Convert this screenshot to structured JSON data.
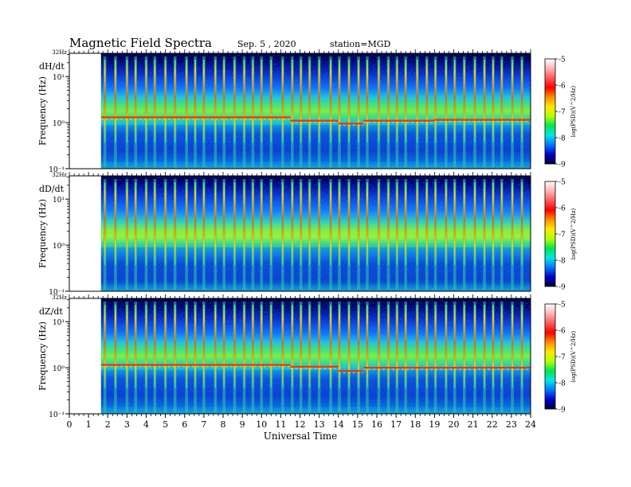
{
  "header": {
    "title": "Magnetic  Field  Spectra",
    "date": "Sep. 5  , 2020",
    "station": "station=MGD"
  },
  "chart_data": {
    "type": "heatmap",
    "xlabel": "Universal  Time",
    "x_ticks": [
      "0",
      "1",
      "2",
      "3",
      "4",
      "5",
      "6",
      "7",
      "8",
      "9",
      "10",
      "11",
      "12",
      "13",
      "14",
      "15",
      "16",
      "17",
      "18",
      "19",
      "20",
      "21",
      "22",
      "23",
      "24"
    ],
    "xlim": [
      0,
      24
    ],
    "data_start_hour": 1.65,
    "colorbar": {
      "label": "log10(PSD)(V^2/Hz)",
      "label_display": "log(PSD)(V^2/Hz)",
      "ticks": [
        "-5",
        "-6",
        "-7",
        "-8",
        "-9"
      ],
      "range": [
        -9,
        -5
      ],
      "colors": [
        "#00003c",
        "#0000c8",
        "#0078ff",
        "#00e6e6",
        "#00e650",
        "#b4ff00",
        "#ffe600",
        "#ff8c00",
        "#ff0000",
        "#ff5a5a",
        "#ffb4b4",
        "#ffffff"
      ]
    },
    "panels": [
      {
        "component": "dH/dt",
        "ylabel": "Frequency  (Hz)",
        "top_label": "32Hz",
        "y_ticks": [
          "10¹",
          "10⁰",
          "10⁻¹"
        ],
        "ylim_hz": [
          0.1,
          32
        ],
        "band_segments": [
          {
            "start": 1.65,
            "end": 11.5,
            "freq_hz": 1.3
          },
          {
            "start": 11.5,
            "end": 14.0,
            "freq_hz": 1.1
          },
          {
            "start": 14.0,
            "end": 15.3,
            "freq_hz": 0.95
          },
          {
            "start": 15.3,
            "end": 19.0,
            "freq_hz": 1.1
          },
          {
            "start": 19.0,
            "end": 24.0,
            "freq_hz": 1.15
          }
        ]
      },
      {
        "component": "dD/dt",
        "ylabel": "Frequency  (Hz)",
        "top_label": "32Hz",
        "y_ticks": [
          "10¹",
          "10⁰",
          "10⁻¹"
        ],
        "ylim_hz": [
          0.1,
          32
        ],
        "band_segments": []
      },
      {
        "component": "dZ/dt",
        "ylabel": "Frequency  (Hz)",
        "top_label": "32Hz",
        "y_ticks": [
          "10¹",
          "10⁰",
          "10⁻¹"
        ],
        "ylim_hz": [
          0.1,
          32
        ],
        "band_segments": [
          {
            "start": 1.65,
            "end": 11.5,
            "freq_hz": 1.15
          },
          {
            "start": 11.5,
            "end": 14.0,
            "freq_hz": 1.05
          },
          {
            "start": 14.0,
            "end": 15.3,
            "freq_hz": 0.85
          },
          {
            "start": 15.3,
            "end": 24.0,
            "freq_hz": 1.0
          }
        ]
      }
    ],
    "vertical_streaks_hour": [
      1.85,
      2.4,
      3.0,
      3.45,
      4.0,
      4.45,
      5.0,
      5.5,
      6.1,
      6.55,
      7.0,
      7.6,
      8.05,
      8.6,
      9.1,
      9.55,
      10.0,
      10.5,
      11.1,
      11.6,
      12.05,
      12.5,
      13.0,
      13.6,
      14.05,
      14.55,
      15.05,
      15.5,
      16.1,
      16.6,
      17.05,
      17.5,
      18.1,
      18.6,
      19.05,
      19.6,
      20.05,
      20.55,
      21.1,
      21.6,
      22.05,
      22.5,
      23.05,
      23.55
    ]
  }
}
